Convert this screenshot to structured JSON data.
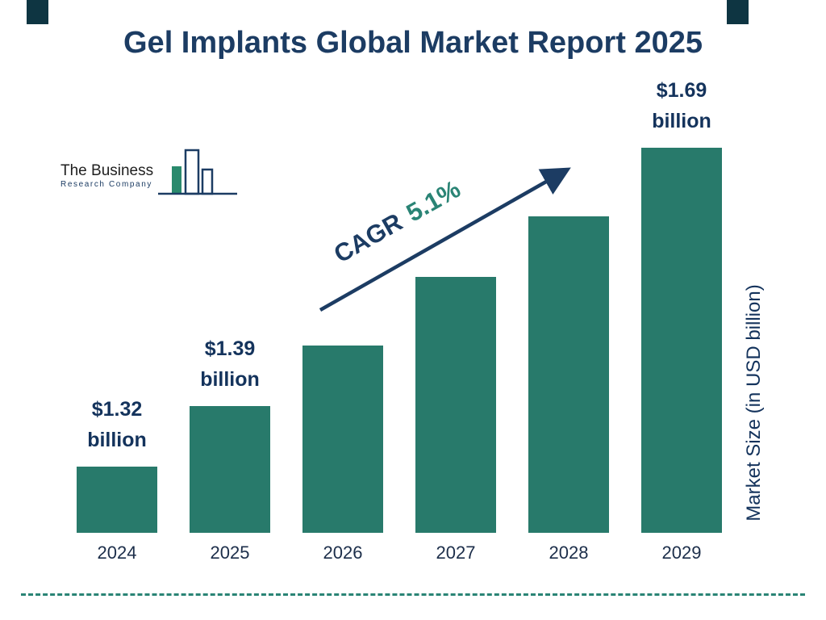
{
  "page": {
    "title": "Gel Implants Global Market Report 2025"
  },
  "logo": {
    "name_top": "The Business",
    "name_bottom": "Research Company"
  },
  "annotation": {
    "cagr_label": "CAGR",
    "cagr_value": "5.1%"
  },
  "axis": {
    "y_label": "Market Size (in USD billion)"
  },
  "chart_data": {
    "type": "bar",
    "title": "Gel Implants Global Market Report 2025",
    "categories": [
      "2024",
      "2025",
      "2026",
      "2027",
      "2028",
      "2029"
    ],
    "values": [
      1.32,
      1.39,
      1.46,
      1.54,
      1.61,
      1.69
    ],
    "value_labels": {
      "0": {
        "amount": "$1.32",
        "unit": "billion"
      },
      "1": {
        "amount": "$1.39",
        "unit": "billion"
      },
      "5": {
        "amount": "$1.69",
        "unit": "billion"
      }
    },
    "xlabel": "",
    "ylabel": "Market Size (in USD billion)",
    "annotation": "CAGR 5.1%",
    "bar_color": "#287a6b",
    "legend_position": "none",
    "grid": false
  },
  "colors": {
    "bar": "#287a6b",
    "navy_text": "#1c3c63",
    "teal_accent": "#2a8475",
    "corner_block": "#0e3542"
  }
}
